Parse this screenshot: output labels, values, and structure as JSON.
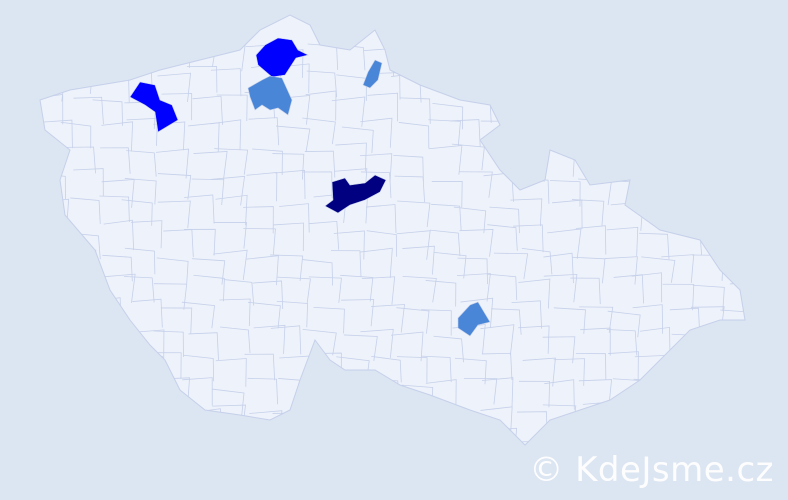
{
  "watermark": "© KdeJsme.cz",
  "colors": {
    "background": "#dce5f2",
    "land": "#eef2fa",
    "borders": "#c5d0ea",
    "level_high": "#000080",
    "level_mid": "#0000ff",
    "level_low": "#4a86d8"
  },
  "highlighted_districts": [
    {
      "level": "mid"
    },
    {
      "level": "mid"
    },
    {
      "level": "low"
    },
    {
      "level": "low"
    },
    {
      "level": "high"
    },
    {
      "level": "low"
    }
  ]
}
